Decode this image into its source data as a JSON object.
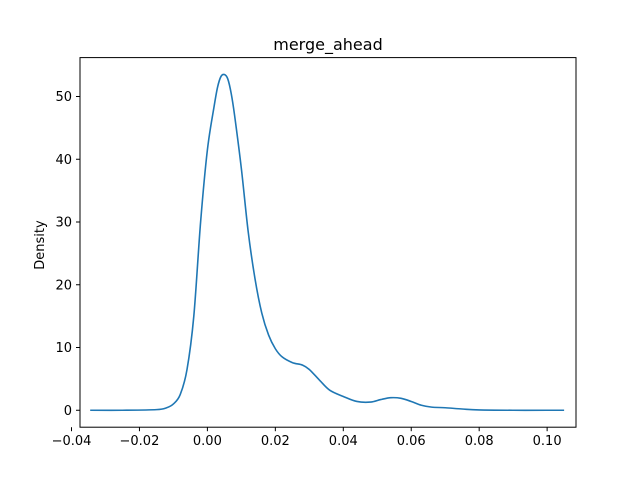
{
  "chart_data": {
    "type": "line",
    "title": "merge_ahead",
    "xlabel": "",
    "ylabel": "Density",
    "xlim": [
      -0.0375,
      0.1085
    ],
    "ylim": [
      -2.7,
      56.2
    ],
    "grid": false,
    "legend": "none",
    "x_ticks": [
      {
        "value": -0.04,
        "label": "−0.04"
      },
      {
        "value": -0.02,
        "label": "−0.02"
      },
      {
        "value": 0.0,
        "label": "0.00"
      },
      {
        "value": 0.02,
        "label": "0.02"
      },
      {
        "value": 0.04,
        "label": "0.04"
      },
      {
        "value": 0.06,
        "label": "0.06"
      },
      {
        "value": 0.08,
        "label": "0.08"
      },
      {
        "value": 0.1,
        "label": "0.10"
      }
    ],
    "y_ticks": [
      {
        "value": 0,
        "label": "0"
      },
      {
        "value": 10,
        "label": "10"
      },
      {
        "value": 20,
        "label": "20"
      },
      {
        "value": 30,
        "label": "30"
      },
      {
        "value": 40,
        "label": "40"
      },
      {
        "value": 50,
        "label": "50"
      }
    ],
    "series": [
      {
        "name": "merge_ahead",
        "color": "#1f77b4",
        "x": [
          -0.0345,
          -0.025,
          -0.015,
          -0.012,
          -0.01,
          -0.008,
          -0.006,
          -0.004,
          -0.002,
          0.0,
          0.002,
          0.003,
          0.004,
          0.005,
          0.006,
          0.007,
          0.008,
          0.01,
          0.012,
          0.014,
          0.016,
          0.018,
          0.02,
          0.022,
          0.025,
          0.028,
          0.03,
          0.033,
          0.036,
          0.04,
          0.044,
          0.048,
          0.051,
          0.054,
          0.057,
          0.06,
          0.063,
          0.066,
          0.07,
          0.075,
          0.08,
          0.09,
          0.1,
          0.105
        ],
        "y": [
          0.0,
          0.0,
          0.1,
          0.4,
          1.0,
          2.5,
          6.5,
          15.0,
          30.0,
          41.5,
          48.5,
          51.5,
          53.2,
          53.5,
          52.8,
          50.5,
          47.0,
          38.5,
          28.5,
          21.0,
          15.5,
          12.0,
          9.8,
          8.5,
          7.6,
          7.2,
          6.5,
          4.8,
          3.2,
          2.2,
          1.4,
          1.3,
          1.7,
          2.0,
          1.9,
          1.4,
          0.8,
          0.5,
          0.4,
          0.2,
          0.05,
          0.0,
          0.0,
          0.0
        ]
      }
    ]
  }
}
